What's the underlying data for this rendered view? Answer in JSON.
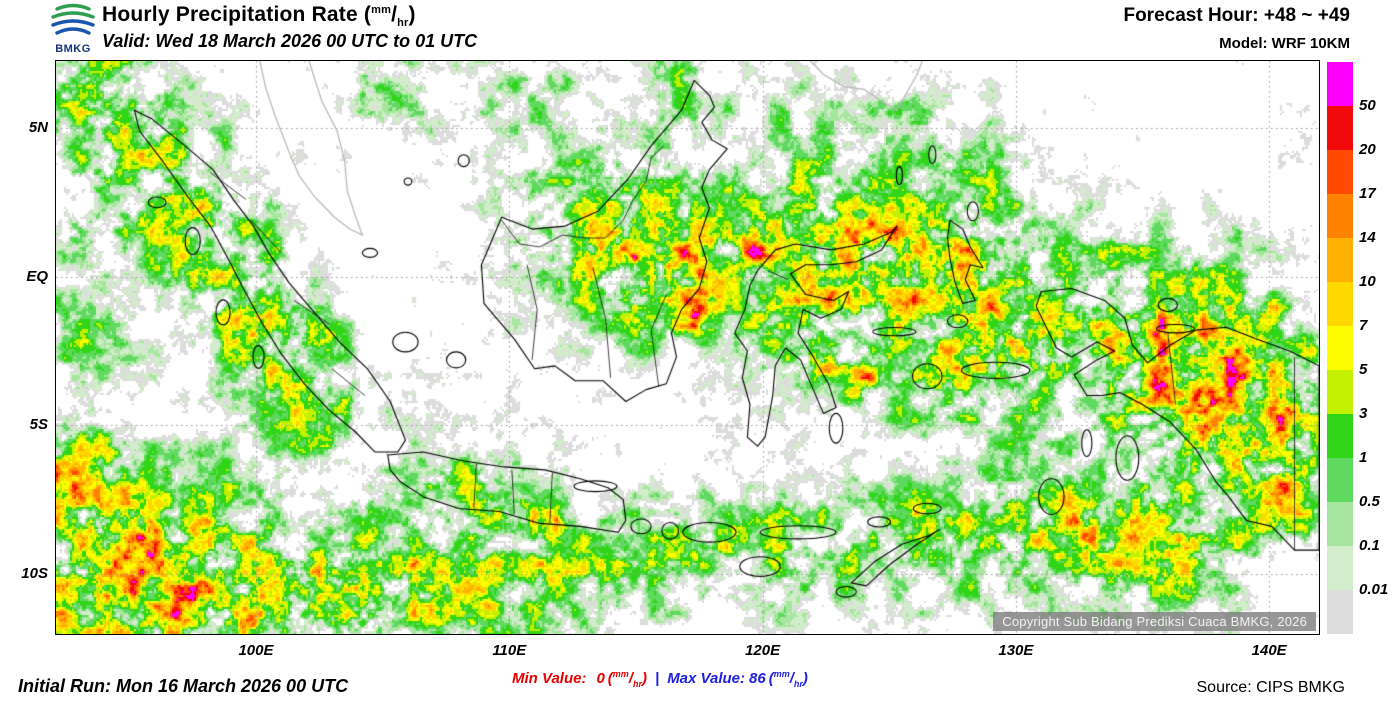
{
  "header": {
    "title": "Hourly Precipitation Rate ",
    "valid_line": "Valid: Wed 18 March 2026 00 UTC to 01 UTC",
    "forecast_hour": "Forecast Hour: +48 ~ +49",
    "model": "Model: WRF 10KM",
    "logo_text": "BMKG"
  },
  "units": {
    "open": "(",
    "num": "mm",
    "slash": "/",
    "den": "hr",
    "close": ")"
  },
  "map": {
    "lat_labels": [
      "5N",
      "EQ",
      "5S",
      "10S"
    ],
    "lon_labels": [
      "100E",
      "110E",
      "120E",
      "130E",
      "140E"
    ],
    "copyright": "Copyright Sub Bidang Prediksi Cuaca BMKG, 2026"
  },
  "colorbar": {
    "labels": [
      "50",
      "20",
      "17",
      "14",
      "10",
      "7",
      "5",
      "3",
      "1",
      "0.5",
      "0.1",
      "0.01"
    ],
    "colors": [
      "#fa00fa",
      "#f20a0a",
      "#ff4a00",
      "#ff8200",
      "#ffb000",
      "#ffd800",
      "#fdfd00",
      "#c3ef00",
      "#30d518",
      "#5fd95f",
      "#a6e69e",
      "#d2edca",
      "#dcdcdc"
    ]
  },
  "footer": {
    "initial_run": "Initial Run: Mon 16 March 2026 00 UTC",
    "min_label": "Min Value:",
    "min_value": "0",
    "separator": "|",
    "max_label": "Max Value:",
    "max_value": "86",
    "source": "Source: CIPS BMKG",
    "min_color": "#e80000",
    "max_color": "#2020dd"
  }
}
